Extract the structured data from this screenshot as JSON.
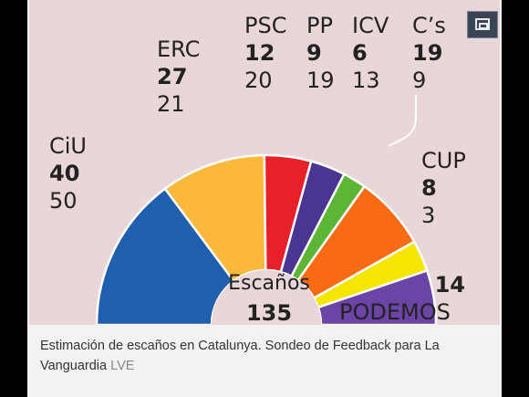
{
  "chart_data": {
    "type": "pie",
    "subtype": "parliament-semicircle",
    "center_label": "Escaños",
    "total": "135",
    "parties": [
      {
        "name": "CiU",
        "seats": 40,
        "previous": "50",
        "color": "#1f5fae"
      },
      {
        "name": "ERC",
        "seats": 27,
        "previous": "21",
        "color": "#fcb83a"
      },
      {
        "name": "PSC",
        "seats": 12,
        "previous": "20",
        "color": "#e8202a"
      },
      {
        "name": "PP",
        "seats": 9,
        "previous": "19",
        "color": "#4a3592"
      },
      {
        "name": "ICV",
        "seats": 6,
        "previous": "13",
        "color": "#5db535"
      },
      {
        "name": "C's",
        "seats": 19,
        "previous": "9",
        "color": "#f96a14"
      },
      {
        "name": "CUP",
        "seats": 8,
        "previous": "3",
        "color": "#f5e600"
      },
      {
        "name": "PODEMOS",
        "seats": 14,
        "previous": "",
        "color": "#6b44a6"
      }
    ]
  },
  "labels": {
    "CiU": {
      "name": "CiU",
      "new": "40",
      "old": "50"
    },
    "ERC": {
      "name": "ERC",
      "new": "27",
      "old": "21"
    },
    "PSC": {
      "name": "PSC",
      "new": "12",
      "old": "20"
    },
    "PP": {
      "name": "PP",
      "new": "9",
      "old": "19"
    },
    "ICV": {
      "name": "ICV",
      "new": "6",
      "old": "13"
    },
    "Cs": {
      "name": "C’s",
      "new": "19",
      "old": "9"
    },
    "CUP": {
      "name": "CUP",
      "new": "8",
      "old": "3"
    },
    "PODEMOS": {
      "name": "PODEMOS",
      "new": "14"
    }
  },
  "caption": {
    "text": "Estimación de escaños en Catalunya. Sondeo de Feedback para La Vanguardia",
    "source": "LVE"
  },
  "icons": {
    "expand": "expand-icon"
  }
}
